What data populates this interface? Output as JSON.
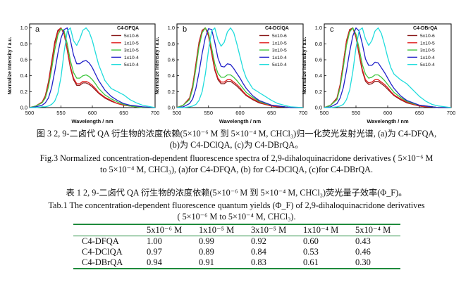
{
  "figure": {
    "ylabel": "Normalize Intensity / a.u.",
    "xlabel": "Wavelength / nm",
    "x_ticks": [
      "500",
      "550",
      "600",
      "650",
      "700"
    ],
    "y_ticks": [
      "0.0",
      "0.2",
      "0.4",
      "0.6",
      "0.8",
      "1.0"
    ],
    "series_colors": [
      "#8a1a1a",
      "#e02020",
      "#3ec63e",
      "#2020c8",
      "#20dcdc"
    ],
    "legend_labels": [
      "5x10-6",
      "1x10-5",
      "3x10-5",
      "1x10-4",
      "5x10-4"
    ]
  },
  "chart_data": [
    {
      "type": "line",
      "panel": "a",
      "title": "C4-DFQA",
      "xlabel": "Wavelength / nm",
      "ylabel": "Normalize Intensity / a.u.",
      "xlim": [
        500,
        700
      ],
      "ylim": [
        0,
        1.05
      ],
      "x": [
        500,
        510,
        520,
        525,
        530,
        535,
        540,
        545,
        550,
        555,
        560,
        565,
        570,
        575,
        580,
        585,
        590,
        595,
        600,
        605,
        610,
        620,
        630,
        640,
        650,
        660,
        670,
        680,
        700
      ],
      "series": [
        {
          "name": "5x10-6",
          "values": [
            0.0,
            0.02,
            0.07,
            0.15,
            0.32,
            0.57,
            0.82,
            0.97,
            1.0,
            0.92,
            0.72,
            0.5,
            0.35,
            0.28,
            0.28,
            0.31,
            0.31,
            0.29,
            0.26,
            0.22,
            0.18,
            0.12,
            0.08,
            0.05,
            0.03,
            0.02,
            0.01,
            0.0,
            0.0
          ]
        },
        {
          "name": "1x10-5",
          "values": [
            0.0,
            0.02,
            0.07,
            0.14,
            0.3,
            0.54,
            0.79,
            0.95,
            1.0,
            0.93,
            0.74,
            0.52,
            0.37,
            0.3,
            0.3,
            0.33,
            0.33,
            0.31,
            0.28,
            0.24,
            0.19,
            0.13,
            0.09,
            0.05,
            0.03,
            0.02,
            0.01,
            0.0,
            0.0
          ]
        },
        {
          "name": "3x10-5",
          "values": [
            0.0,
            0.02,
            0.06,
            0.12,
            0.26,
            0.48,
            0.72,
            0.91,
            0.99,
            0.96,
            0.8,
            0.59,
            0.44,
            0.37,
            0.37,
            0.4,
            0.41,
            0.39,
            0.35,
            0.3,
            0.24,
            0.16,
            0.11,
            0.07,
            0.04,
            0.02,
            0.01,
            0.0,
            0.0
          ]
        },
        {
          "name": "1x10-4",
          "values": [
            0.0,
            0.01,
            0.03,
            0.06,
            0.12,
            0.25,
            0.45,
            0.68,
            0.87,
            0.98,
            1.0,
            0.85,
            0.66,
            0.55,
            0.55,
            0.58,
            0.59,
            0.56,
            0.5,
            0.42,
            0.34,
            0.22,
            0.14,
            0.09,
            0.05,
            0.03,
            0.02,
            0.01,
            0.0
          ]
        },
        {
          "name": "5x10-4",
          "values": [
            0.0,
            0.0,
            0.01,
            0.01,
            0.02,
            0.04,
            0.08,
            0.18,
            0.38,
            0.7,
            0.96,
            1.0,
            0.84,
            0.78,
            0.86,
            0.97,
            1.0,
            0.95,
            0.84,
            0.69,
            0.54,
            0.34,
            0.24,
            0.2,
            0.16,
            0.1,
            0.06,
            0.03,
            0.0
          ]
        }
      ]
    },
    {
      "type": "line",
      "panel": "b",
      "title": "C4-DClQA",
      "xlabel": "Wavelength / nm",
      "ylabel": "Normalize Intensity / a.u.",
      "xlim": [
        500,
        700
      ],
      "ylim": [
        0,
        1.05
      ],
      "x": [
        500,
        510,
        520,
        525,
        530,
        535,
        540,
        545,
        550,
        555,
        560,
        565,
        570,
        575,
        580,
        585,
        590,
        595,
        600,
        605,
        610,
        620,
        630,
        640,
        650,
        660,
        670,
        680,
        700
      ],
      "series": [
        {
          "name": "5x10-6",
          "values": [
            0.0,
            0.03,
            0.12,
            0.28,
            0.55,
            0.82,
            0.97,
            1.0,
            0.9,
            0.68,
            0.47,
            0.35,
            0.3,
            0.3,
            0.33,
            0.33,
            0.3,
            0.27,
            0.23,
            0.19,
            0.15,
            0.1,
            0.06,
            0.04,
            0.02,
            0.01,
            0.01,
            0.0,
            0.0
          ]
        },
        {
          "name": "1x10-5",
          "values": [
            0.0,
            0.03,
            0.11,
            0.27,
            0.53,
            0.8,
            0.96,
            1.0,
            0.91,
            0.7,
            0.49,
            0.37,
            0.32,
            0.32,
            0.35,
            0.35,
            0.32,
            0.29,
            0.25,
            0.2,
            0.16,
            0.11,
            0.07,
            0.04,
            0.02,
            0.01,
            0.01,
            0.0,
            0.0
          ]
        },
        {
          "name": "3x10-5",
          "values": [
            0.0,
            0.03,
            0.1,
            0.24,
            0.49,
            0.76,
            0.94,
            1.0,
            0.94,
            0.75,
            0.55,
            0.43,
            0.38,
            0.38,
            0.41,
            0.41,
            0.38,
            0.34,
            0.29,
            0.24,
            0.19,
            0.13,
            0.08,
            0.05,
            0.03,
            0.02,
            0.01,
            0.0,
            0.0
          ]
        },
        {
          "name": "1x10-4",
          "values": [
            0.0,
            0.01,
            0.05,
            0.11,
            0.24,
            0.44,
            0.68,
            0.88,
            0.99,
            0.98,
            0.82,
            0.62,
            0.52,
            0.51,
            0.55,
            0.54,
            0.49,
            0.43,
            0.37,
            0.3,
            0.24,
            0.15,
            0.09,
            0.06,
            0.03,
            0.02,
            0.01,
            0.0,
            0.0
          ]
        },
        {
          "name": "5x10-4",
          "values": [
            0.0,
            0.0,
            0.01,
            0.02,
            0.04,
            0.09,
            0.2,
            0.42,
            0.72,
            0.96,
            1.0,
            0.85,
            0.77,
            0.82,
            0.95,
            1.0,
            0.94,
            0.8,
            0.64,
            0.48,
            0.37,
            0.24,
            0.19,
            0.14,
            0.09,
            0.05,
            0.03,
            0.01,
            0.0
          ]
        }
      ]
    },
    {
      "type": "line",
      "panel": "c",
      "title": "C4-DBrQA",
      "xlabel": "Wavelength / nm",
      "ylabel": "Normalize Intensity / a.u.",
      "xlim": [
        500,
        700
      ],
      "ylim": [
        0,
        1.05
      ],
      "x": [
        500,
        510,
        520,
        525,
        530,
        535,
        540,
        545,
        550,
        555,
        560,
        565,
        570,
        575,
        580,
        585,
        590,
        595,
        600,
        605,
        610,
        620,
        630,
        640,
        650,
        660,
        670,
        680,
        700
      ],
      "series": [
        {
          "name": "5x10-6",
          "values": [
            0.0,
            0.03,
            0.12,
            0.29,
            0.56,
            0.84,
            0.98,
            1.0,
            0.88,
            0.66,
            0.46,
            0.33,
            0.29,
            0.3,
            0.33,
            0.33,
            0.3,
            0.27,
            0.23,
            0.19,
            0.15,
            0.1,
            0.06,
            0.04,
            0.02,
            0.01,
            0.01,
            0.0,
            0.0
          ]
        },
        {
          "name": "1x10-5",
          "values": [
            0.0,
            0.03,
            0.11,
            0.28,
            0.55,
            0.83,
            0.97,
            1.0,
            0.89,
            0.68,
            0.48,
            0.35,
            0.31,
            0.32,
            0.35,
            0.35,
            0.32,
            0.29,
            0.25,
            0.2,
            0.16,
            0.11,
            0.07,
            0.04,
            0.02,
            0.01,
            0.01,
            0.0,
            0.0
          ]
        },
        {
          "name": "3x10-5",
          "values": [
            0.0,
            0.03,
            0.1,
            0.25,
            0.5,
            0.78,
            0.95,
            1.0,
            0.92,
            0.74,
            0.54,
            0.42,
            0.37,
            0.38,
            0.41,
            0.41,
            0.38,
            0.34,
            0.29,
            0.24,
            0.19,
            0.13,
            0.08,
            0.05,
            0.03,
            0.02,
            0.01,
            0.0,
            0.0
          ]
        },
        {
          "name": "1x10-4",
          "values": [
            0.0,
            0.01,
            0.05,
            0.12,
            0.25,
            0.46,
            0.7,
            0.9,
            1.0,
            0.96,
            0.8,
            0.61,
            0.53,
            0.53,
            0.57,
            0.56,
            0.5,
            0.44,
            0.37,
            0.3,
            0.24,
            0.15,
            0.09,
            0.06,
            0.03,
            0.02,
            0.01,
            0.0,
            0.0
          ]
        },
        {
          "name": "5x10-4",
          "values": [
            0.0,
            0.0,
            0.01,
            0.02,
            0.04,
            0.1,
            0.22,
            0.45,
            0.75,
            0.97,
            1.0,
            0.86,
            0.78,
            0.84,
            0.96,
            1.0,
            0.93,
            0.79,
            0.63,
            0.5,
            0.42,
            0.35,
            0.3,
            0.22,
            0.14,
            0.08,
            0.04,
            0.02,
            0.0
          ]
        }
      ]
    }
  ],
  "captions": {
    "fig_cn": "图 3 2, 9-二卤代 QA 衍生物的浓度依赖(5×10⁻⁶ M 到 5×10⁻⁴ M, CHCl₃)归一化荧光发射光谱, (a)为 C4-DFQA,",
    "fig_cn2": "(b)为 C4-DClQA, (c)为 C4-DBrQA。",
    "fig_en": "Fig.3 Normalized concentration-dependent fluorescence spectra of 2,9-dihaloquinacridone derivatives ( 5×10⁻⁶ M",
    "fig_en2": "to 5×10⁻⁴ M, CHCl₃), (a)for C4-DFQA, (b) for C4-DClQA, (c)for C4-DBrQA.",
    "tab_cn": "表 1 2, 9-二卤代 QA 衍生物的浓度依赖(5×10⁻⁶ M  到 5×10⁻⁴ M, CHCl₃)荧光量子效率(Φ_F)。",
    "tab_en": "Tab.1 The concentration-dependent fluorescence quantum yields (Φ_F) of 2,9-dihaloquinacridone derivatives",
    "tab_en2": "( 5×10⁻⁶ M to 5×10⁻⁴ M, CHCl₃)."
  },
  "table": {
    "headers": [
      "",
      "5x10⁻⁶ M",
      "1x10⁻⁵ M",
      "3x10⁻⁵ M",
      "1x10⁻⁴ M",
      "5x10⁻⁴ M"
    ],
    "rows": [
      [
        "C4-DFQA",
        "1.00",
        "0.99",
        "0.92",
        "0.60",
        "0.43"
      ],
      [
        "C4-DClQA",
        "0.97",
        "0.89",
        "0.84",
        "0.53",
        "0.46"
      ],
      [
        "C4-DBrQA",
        "0.94",
        "0.91",
        "0.83",
        "0.61",
        "0.30"
      ]
    ]
  }
}
